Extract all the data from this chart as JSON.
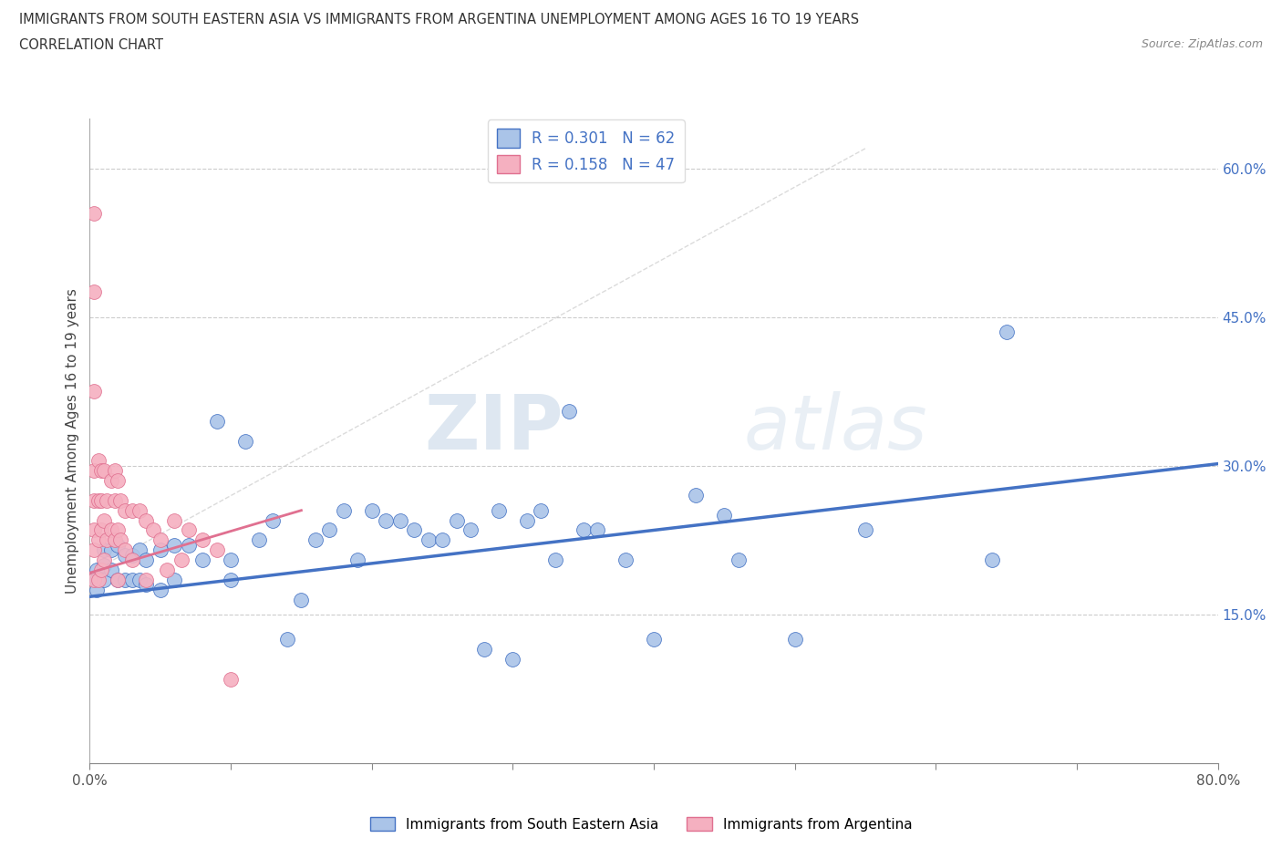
{
  "title_line1": "IMMIGRANTS FROM SOUTH EASTERN ASIA VS IMMIGRANTS FROM ARGENTINA UNEMPLOYMENT AMONG AGES 16 TO 19 YEARS",
  "title_line2": "CORRELATION CHART",
  "source_text": "Source: ZipAtlas.com",
  "ylabel": "Unemployment Among Ages 16 to 19 years",
  "xlim": [
    0.0,
    0.8
  ],
  "ylim": [
    0.0,
    0.65
  ],
  "xticks": [
    0.0,
    0.2,
    0.4,
    0.6,
    0.8
  ],
  "xticklabels": [
    "0.0%",
    "",
    "",
    "",
    "80.0%"
  ],
  "yticks_right": [
    0.15,
    0.3,
    0.45,
    0.6
  ],
  "yticklabels_right": [
    "15.0%",
    "30.0%",
    "45.0%",
    "60.0%"
  ],
  "watermark_zip": "ZIP",
  "watermark_atlas": "atlas",
  "color_sea": "#aac4e8",
  "color_arg": "#f5b0c0",
  "color_sea_line": "#4472c4",
  "color_arg_line": "#e07090",
  "color_text_blue": "#4472c4",
  "sea_x": [
    0.005,
    0.005,
    0.005,
    0.01,
    0.01,
    0.01,
    0.015,
    0.015,
    0.02,
    0.02,
    0.025,
    0.025,
    0.03,
    0.03,
    0.035,
    0.035,
    0.04,
    0.04,
    0.05,
    0.05,
    0.06,
    0.06,
    0.07,
    0.08,
    0.09,
    0.1,
    0.1,
    0.11,
    0.12,
    0.13,
    0.14,
    0.15,
    0.16,
    0.17,
    0.18,
    0.19,
    0.2,
    0.21,
    0.22,
    0.23,
    0.24,
    0.25,
    0.26,
    0.27,
    0.28,
    0.29,
    0.3,
    0.31,
    0.32,
    0.33,
    0.34,
    0.35,
    0.36,
    0.38,
    0.4,
    0.43,
    0.45,
    0.46,
    0.5,
    0.55,
    0.64,
    0.65
  ],
  "sea_y": [
    0.195,
    0.185,
    0.175,
    0.215,
    0.2,
    0.185,
    0.215,
    0.195,
    0.22,
    0.185,
    0.21,
    0.185,
    0.21,
    0.185,
    0.215,
    0.185,
    0.205,
    0.18,
    0.215,
    0.175,
    0.22,
    0.185,
    0.22,
    0.205,
    0.345,
    0.205,
    0.185,
    0.325,
    0.225,
    0.245,
    0.125,
    0.165,
    0.225,
    0.235,
    0.255,
    0.205,
    0.255,
    0.245,
    0.245,
    0.235,
    0.225,
    0.225,
    0.245,
    0.235,
    0.115,
    0.255,
    0.105,
    0.245,
    0.255,
    0.205,
    0.355,
    0.235,
    0.235,
    0.205,
    0.125,
    0.27,
    0.25,
    0.205,
    0.125,
    0.235,
    0.205,
    0.435
  ],
  "arg_x": [
    0.003,
    0.003,
    0.003,
    0.003,
    0.003,
    0.003,
    0.003,
    0.003,
    0.006,
    0.006,
    0.006,
    0.006,
    0.008,
    0.008,
    0.008,
    0.008,
    0.01,
    0.01,
    0.01,
    0.012,
    0.012,
    0.015,
    0.015,
    0.018,
    0.018,
    0.018,
    0.02,
    0.02,
    0.02,
    0.022,
    0.022,
    0.025,
    0.025,
    0.03,
    0.03,
    0.035,
    0.04,
    0.04,
    0.045,
    0.05,
    0.055,
    0.06,
    0.065,
    0.07,
    0.08,
    0.09,
    0.1
  ],
  "arg_y": [
    0.555,
    0.475,
    0.375,
    0.295,
    0.265,
    0.235,
    0.215,
    0.185,
    0.305,
    0.265,
    0.225,
    0.185,
    0.295,
    0.265,
    0.235,
    0.195,
    0.295,
    0.245,
    0.205,
    0.265,
    0.225,
    0.285,
    0.235,
    0.295,
    0.265,
    0.225,
    0.285,
    0.235,
    0.185,
    0.265,
    0.225,
    0.255,
    0.215,
    0.255,
    0.205,
    0.255,
    0.245,
    0.185,
    0.235,
    0.225,
    0.195,
    0.245,
    0.205,
    0.235,
    0.225,
    0.215,
    0.085
  ],
  "sea_trendline_x": [
    0.0,
    0.8
  ],
  "sea_trendline_y": [
    0.168,
    0.302
  ],
  "arg_trendline_x": [
    0.0,
    0.15
  ],
  "arg_trendline_y": [
    0.192,
    0.255
  ]
}
